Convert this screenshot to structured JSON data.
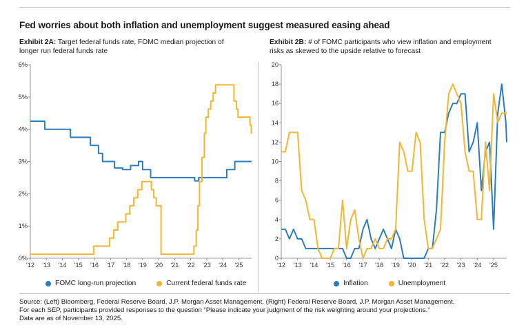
{
  "title": "Fed worries about both inflation and unemployment suggest measured easing ahead",
  "exhibit_a": {
    "label": "Exhibit 2A:",
    "text": "Target federal funds rate, FOMC median projection of longer run federal funds rate"
  },
  "exhibit_b": {
    "label": "Exhibit 2B:",
    "text": "# of FOMC participants who view inflation and employment risks as skewed to the upside relative to forecast"
  },
  "colors": {
    "blue": "#2b7bbd",
    "gold": "#f5b530"
  },
  "source": {
    "line1": "Source: (Left) Bloomberg, Federal Reserve Board, J.P. Morgan Asset Management. (Right) Federal Reserve Board, J.P. Morgan Asset Management.",
    "line2": "For each SEP, participants provided responses to the question “Please indicate your judgment of the risk weighting around your projections.”",
    "line3": "Data are as of November 13, 2025."
  },
  "chart_data": [
    {
      "type": "line",
      "title": "Exhibit 2A: Target federal funds rate, FOMC median projection of longer run federal funds rate",
      "xlabel": "",
      "ylabel": "",
      "xlim": [
        2012,
        2025.8
      ],
      "ylim": [
        0,
        6
      ],
      "x_ticks": [
        2012,
        2013,
        2014,
        2015,
        2016,
        2017,
        2018,
        2019,
        2020,
        2021,
        2022,
        2023,
        2024,
        2025
      ],
      "x_tick_labels": [
        "'12",
        "'13",
        "'14",
        "'15",
        "'16",
        "'17",
        "'18",
        "'19",
        "'20",
        "'21",
        "'22",
        "'23",
        "'24",
        "'25"
      ],
      "y_ticks": [
        0,
        1,
        2,
        3,
        4,
        5,
        6
      ],
      "y_tick_labels": [
        "0%",
        "1%",
        "2%",
        "3%",
        "4%",
        "5%",
        "6%"
      ],
      "legend": "bottom",
      "series": [
        {
          "name": "FOMC long-run projection",
          "color": "#2b7bbd",
          "step": true,
          "points": [
            [
              2012.0,
              4.25
            ],
            [
              2012.9,
              4.0
            ],
            [
              2014.5,
              3.75
            ],
            [
              2015.75,
              3.5
            ],
            [
              2016.25,
              3.25
            ],
            [
              2016.5,
              3.0
            ],
            [
              2016.75,
              3.0
            ],
            [
              2017.0,
              3.0
            ],
            [
              2017.25,
              2.8
            ],
            [
              2017.75,
              2.75
            ],
            [
              2018.0,
              2.75
            ],
            [
              2018.25,
              2.875
            ],
            [
              2018.75,
              3.0
            ],
            [
              2019.0,
              2.75
            ],
            [
              2019.5,
              2.5
            ],
            [
              2020.0,
              2.5
            ],
            [
              2021.0,
              2.5
            ],
            [
              2022.0,
              2.5
            ],
            [
              2022.25,
              2.4
            ],
            [
              2022.5,
              2.5
            ],
            [
              2023.0,
              2.5
            ],
            [
              2024.0,
              2.5
            ],
            [
              2024.25,
              2.75
            ],
            [
              2024.75,
              3.0
            ],
            [
              2025.8,
              3.0
            ]
          ]
        },
        {
          "name": "Current federal funds rate",
          "color": "#f5b530",
          "step": true,
          "points": [
            [
              2012.0,
              0.125
            ],
            [
              2015.95,
              0.375
            ],
            [
              2016.95,
              0.625
            ],
            [
              2017.2,
              0.875
            ],
            [
              2017.45,
              1.125
            ],
            [
              2017.95,
              1.375
            ],
            [
              2018.2,
              1.625
            ],
            [
              2018.45,
              1.875
            ],
            [
              2018.7,
              2.125
            ],
            [
              2018.95,
              2.375
            ],
            [
              2019.55,
              2.125
            ],
            [
              2019.7,
              1.875
            ],
            [
              2019.85,
              1.625
            ],
            [
              2020.15,
              0.125
            ],
            [
              2022.2,
              0.375
            ],
            [
              2022.35,
              0.875
            ],
            [
              2022.45,
              1.625
            ],
            [
              2022.55,
              2.375
            ],
            [
              2022.7,
              3.125
            ],
            [
              2022.85,
              3.875
            ],
            [
              2022.95,
              4.375
            ],
            [
              2023.1,
              4.625
            ],
            [
              2023.25,
              4.875
            ],
            [
              2023.4,
              5.125
            ],
            [
              2023.55,
              5.375
            ],
            [
              2024.7,
              4.875
            ],
            [
              2024.85,
              4.625
            ],
            [
              2024.95,
              4.375
            ],
            [
              2025.7,
              4.125
            ],
            [
              2025.78,
              3.875
            ]
          ]
        }
      ]
    },
    {
      "type": "line",
      "title": "Exhibit 2B: # of FOMC participants who view inflation and employment risks as skewed to the upside relative to forecast",
      "xlabel": "",
      "ylabel": "",
      "xlim": [
        2012,
        2025.8
      ],
      "ylim": [
        0,
        20
      ],
      "x_ticks": [
        2012,
        2013,
        2014,
        2015,
        2016,
        2017,
        2018,
        2019,
        2020,
        2021,
        2022,
        2023,
        2024,
        2025
      ],
      "x_tick_labels": [
        "'12",
        "'13",
        "'14",
        "'15",
        "'16",
        "'17",
        "'18",
        "'19",
        "'20",
        "'21",
        "'22",
        "'23",
        "'24",
        "'25"
      ],
      "y_ticks": [
        0,
        2,
        4,
        6,
        8,
        10,
        12,
        14,
        16,
        18,
        20
      ],
      "y_tick_labels": [
        "0",
        "2",
        "4",
        "6",
        "8",
        "10",
        "12",
        "14",
        "16",
        "18",
        "20"
      ],
      "legend": "bottom",
      "series": [
        {
          "name": "Inflation",
          "color": "#2b7bbd",
          "step": false,
          "points": [
            [
              2012.0,
              3
            ],
            [
              2012.25,
              3
            ],
            [
              2012.5,
              2
            ],
            [
              2012.75,
              3
            ],
            [
              2013.0,
              2
            ],
            [
              2013.25,
              2
            ],
            [
              2013.5,
              1
            ],
            [
              2014.0,
              1
            ],
            [
              2014.5,
              1
            ],
            [
              2015.0,
              1
            ],
            [
              2015.5,
              1
            ],
            [
              2015.75,
              1
            ],
            [
              2016.0,
              0
            ],
            [
              2016.25,
              0
            ],
            [
              2016.5,
              1
            ],
            [
              2016.75,
              1
            ],
            [
              2017.0,
              3
            ],
            [
              2017.25,
              4
            ],
            [
              2017.5,
              2
            ],
            [
              2017.75,
              1
            ],
            [
              2018.0,
              2
            ],
            [
              2018.25,
              3
            ],
            [
              2018.5,
              2
            ],
            [
              2018.75,
              1
            ],
            [
              2019.0,
              3
            ],
            [
              2019.25,
              2
            ],
            [
              2019.5,
              0
            ],
            [
              2020.0,
              0
            ],
            [
              2020.5,
              0
            ],
            [
              2020.75,
              0
            ],
            [
              2021.0,
              1
            ],
            [
              2021.25,
              1
            ],
            [
              2021.5,
              5
            ],
            [
              2021.75,
              13
            ],
            [
              2022.0,
              13
            ],
            [
              2022.25,
              15
            ],
            [
              2022.5,
              16
            ],
            [
              2022.75,
              16
            ],
            [
              2023.0,
              17
            ],
            [
              2023.25,
              17
            ],
            [
              2023.5,
              11
            ],
            [
              2023.75,
              12
            ],
            [
              2024.0,
              14
            ],
            [
              2024.25,
              7
            ],
            [
              2024.5,
              11
            ],
            [
              2024.75,
              12
            ],
            [
              2025.0,
              3
            ],
            [
              2025.25,
              15
            ],
            [
              2025.5,
              18
            ],
            [
              2025.75,
              14
            ],
            [
              2025.8,
              12
            ]
          ]
        },
        {
          "name": "Unemployment",
          "color": "#f5b530",
          "step": false,
          "points": [
            [
              2012.0,
              11
            ],
            [
              2012.25,
              11
            ],
            [
              2012.5,
              13
            ],
            [
              2012.75,
              13
            ],
            [
              2013.0,
              13
            ],
            [
              2013.25,
              7
            ],
            [
              2013.5,
              6
            ],
            [
              2013.75,
              4
            ],
            [
              2014.0,
              4
            ],
            [
              2014.25,
              1
            ],
            [
              2014.5,
              0
            ],
            [
              2014.75,
              0
            ],
            [
              2015.0,
              0
            ],
            [
              2015.25,
              1
            ],
            [
              2015.5,
              1
            ],
            [
              2015.75,
              6
            ],
            [
              2016.0,
              1
            ],
            [
              2016.25,
              4
            ],
            [
              2016.5,
              5
            ],
            [
              2016.75,
              2
            ],
            [
              2017.0,
              0
            ],
            [
              2017.25,
              1
            ],
            [
              2017.5,
              1
            ],
            [
              2017.75,
              2
            ],
            [
              2018.0,
              1
            ],
            [
              2018.25,
              1
            ],
            [
              2018.5,
              2
            ],
            [
              2018.75,
              2
            ],
            [
              2019.0,
              3
            ],
            [
              2019.25,
              12
            ],
            [
              2019.5,
              11
            ],
            [
              2019.75,
              9
            ],
            [
              2020.0,
              9
            ],
            [
              2020.25,
              13
            ],
            [
              2020.5,
              12
            ],
            [
              2020.75,
              4
            ],
            [
              2021.0,
              1
            ],
            [
              2021.25,
              1
            ],
            [
              2021.5,
              2
            ],
            [
              2021.75,
              3
            ],
            [
              2022.0,
              12
            ],
            [
              2022.25,
              17
            ],
            [
              2022.5,
              18
            ],
            [
              2022.75,
              17
            ],
            [
              2023.0,
              16
            ],
            [
              2023.25,
              11
            ],
            [
              2023.5,
              9
            ],
            [
              2023.75,
              9
            ],
            [
              2024.0,
              4
            ],
            [
              2024.25,
              4
            ],
            [
              2024.5,
              12
            ],
            [
              2024.75,
              7
            ],
            [
              2025.0,
              17
            ],
            [
              2025.25,
              14
            ],
            [
              2025.5,
              15
            ],
            [
              2025.8,
              15
            ]
          ]
        }
      ]
    }
  ]
}
